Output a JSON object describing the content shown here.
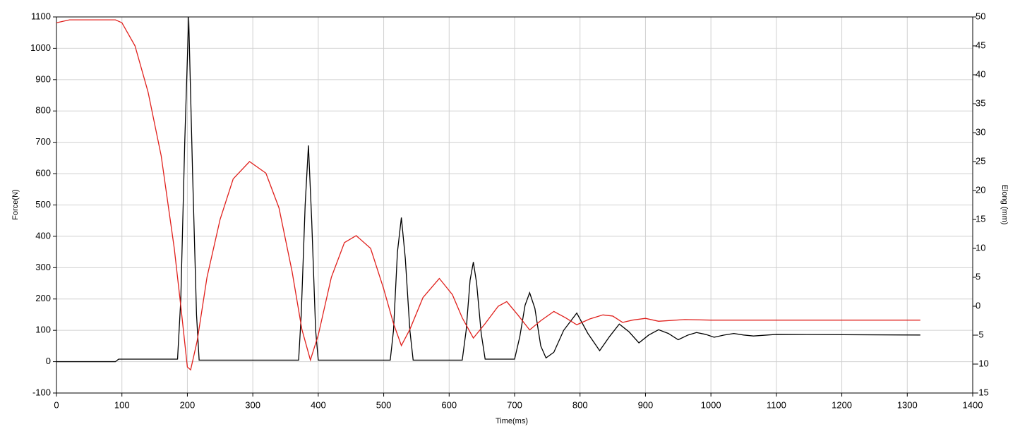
{
  "chart_data": {
    "type": "line",
    "xlabel": "Time(ms)",
    "ylabel": "Force(N)",
    "y2label": "Elong (mm)",
    "xlim": [
      0,
      1400
    ],
    "xticks": [
      0,
      100,
      200,
      300,
      400,
      500,
      600,
      700,
      800,
      900,
      1000,
      1100,
      1200,
      1300,
      1400
    ],
    "ylim": [
      -100,
      1100
    ],
    "yticks": [
      -100,
      0,
      100,
      200,
      300,
      400,
      500,
      600,
      700,
      800,
      900,
      1000,
      1100
    ],
    "y2lim": [
      -15,
      50
    ],
    "y2ticks": [
      -15,
      -10,
      -5,
      0,
      5,
      10,
      15,
      20,
      25,
      30,
      35,
      40,
      45,
      50
    ],
    "grid": true,
    "series": [
      {
        "color": "#000000",
        "x": [
          0,
          90,
          95,
          185,
          190,
          196,
          202,
          208,
          214,
          218,
          370,
          374,
          380,
          385,
          390,
          396,
          400,
          510,
          515,
          521,
          527,
          533,
          540,
          545,
          620,
          626,
          632,
          637,
          642,
          649,
          655,
          700,
          708,
          716,
          723,
          731,
          740,
          748,
          760,
          775,
          795,
          812,
          830,
          845,
          860,
          875,
          890,
          905,
          920,
          935,
          950,
          965,
          978,
          992,
          1005,
          1020,
          1035,
          1050,
          1065,
          1100,
          1320
        ],
        "values": [
          0,
          0,
          8,
          8,
          200,
          700,
          1100,
          600,
          150,
          5,
          5,
          150,
          500,
          690,
          450,
          100,
          5,
          5,
          100,
          350,
          460,
          330,
          100,
          5,
          5,
          100,
          260,
          318,
          250,
          90,
          8,
          8,
          80,
          180,
          220,
          170,
          50,
          12,
          30,
          100,
          155,
          90,
          35,
          80,
          120,
          95,
          60,
          85,
          102,
          90,
          70,
          85,
          93,
          87,
          78,
          85,
          90,
          85,
          82,
          87,
          85
        ]
      },
      {
        "color": "#e0201c",
        "axis": "y2",
        "x": [
          0,
          20,
          90,
          100,
          120,
          140,
          160,
          180,
          190,
          200,
          205,
          215,
          230,
          250,
          270,
          295,
          320,
          340,
          360,
          375,
          388,
          400,
          420,
          440,
          458,
          480,
          500,
          515,
          527,
          540,
          560,
          585,
          605,
          620,
          637,
          655,
          675,
          688,
          705,
          723,
          740,
          760,
          778,
          795,
          815,
          835,
          850,
          865,
          880,
          900,
          920,
          960,
          1000,
          1320
        ],
        "values": [
          49,
          49.5,
          49.5,
          49,
          45,
          37,
          26,
          10,
          0,
          -10.5,
          -11,
          -6,
          5,
          15,
          22,
          25,
          23,
          17,
          6,
          -4,
          -9.3,
          -5,
          5,
          11,
          12.2,
          10,
          3,
          -3,
          -6.8,
          -4,
          1.5,
          4.8,
          2,
          -2,
          -5.5,
          -3,
          0,
          0.8,
          -1.5,
          -4.1,
          -2.5,
          -0.9,
          -2,
          -3.2,
          -2.2,
          -1.5,
          -1.7,
          -2.8,
          -2.4,
          -2.1,
          -2.6,
          -2.3,
          -2.4,
          -2.4
        ]
      }
    ]
  }
}
